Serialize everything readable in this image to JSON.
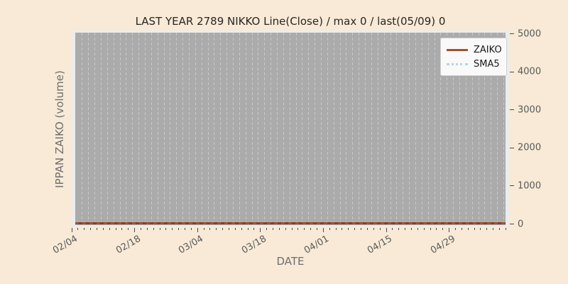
{
  "colors": {
    "figure_bg": "#f8ead6",
    "axes_bg": "#ececec",
    "panel_bg": "#ababab",
    "grid": "#c9c9c9",
    "tick_label": "#595959",
    "title": "#262626",
    "axis_label": "#6e6e6e",
    "zaiko_line": "#a0522d",
    "sma5_line": "#add8e6"
  },
  "chart_data": {
    "type": "line",
    "title": "LAST YEAR 2789 NIKKO Line(Close) / max 0 / last(05/09) 0",
    "xlabel": "DATE",
    "ylabel": "IPPAN ZAIKO (volume)",
    "ylim": [
      0,
      5000
    ],
    "yticks": [
      0,
      1000,
      2000,
      3000,
      4000,
      5000
    ],
    "xticks": [
      "02/04",
      "02/18",
      "03/04",
      "03/18",
      "04/01",
      "04/15",
      "04/29"
    ],
    "x_minor_ticks": "every trading day",
    "grid": "vertical dashed, per trading day",
    "legend_position": "upper right",
    "series": [
      {
        "name": "ZAIKO",
        "color": "#a0522d",
        "line_style": "solid",
        "values": [
          0,
          0,
          0,
          0,
          0,
          0,
          0
        ]
      },
      {
        "name": "SMA5",
        "color": "#add8e6",
        "line_style": "dotted",
        "values": [
          0,
          0,
          0,
          0,
          0,
          0,
          0
        ]
      }
    ],
    "max_value": 0,
    "last_point": {
      "date": "05/09",
      "value": 0
    }
  }
}
